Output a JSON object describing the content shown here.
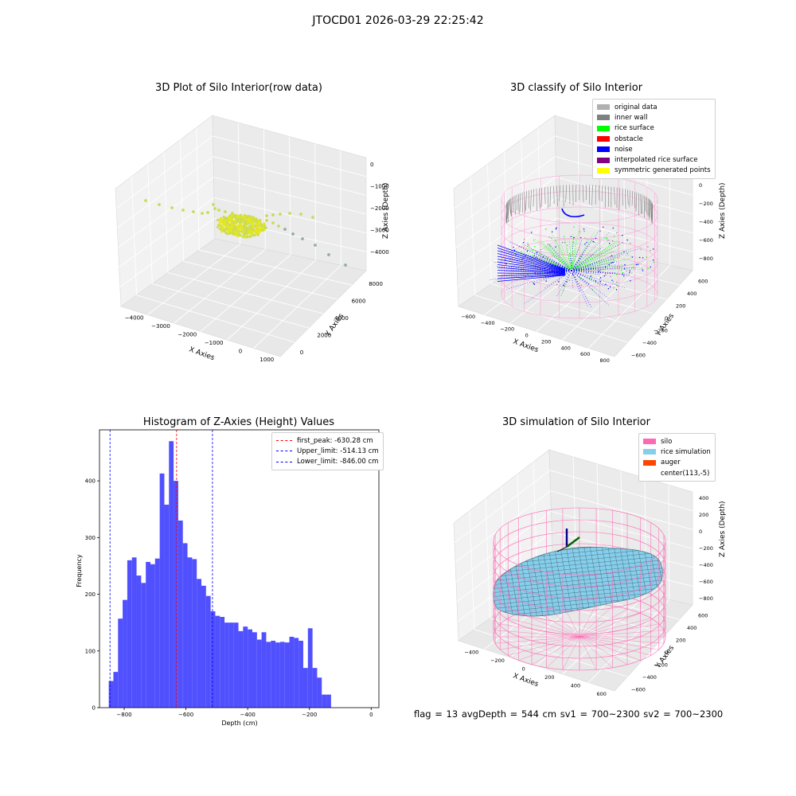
{
  "suptitle": "JTOCD01 2026-03-29 22:25:42",
  "plot1": {
    "title": "3D Plot of Silo Interior(row data)",
    "xlabel": "X Axies",
    "ylabel": "Y Axies",
    "zlabel": "Z Axies (Depth)",
    "xticks": [
      "−4000",
      "−3000",
      "−2000",
      "−1000",
      "0",
      "1000"
    ],
    "yticks": [
      "0",
      "2000",
      "4000",
      "6000",
      "8000"
    ],
    "zticks": [
      "0",
      "−1000",
      "−2000",
      "−3000",
      "−4000"
    ]
  },
  "plot2": {
    "title": "3D classify of Silo Interior",
    "xlabel": "X Axies",
    "ylabel": "Y Axies",
    "zlabel": "Z Axies (Depth)",
    "xticks": [
      "−600",
      "−400",
      "−200",
      "0",
      "200",
      "400",
      "600",
      "800"
    ],
    "yticks": [
      "−600",
      "−400",
      "−200",
      "0",
      "200",
      "400",
      "600"
    ],
    "zticks": [
      "200",
      "0",
      "−200",
      "−400",
      "−600",
      "−800"
    ],
    "legend": [
      {
        "label": "original data",
        "color": "#b0b0b0"
      },
      {
        "label": "inner wall",
        "color": "#808080"
      },
      {
        "label": "rice surface",
        "color": "#00ff00"
      },
      {
        "label": "obstacle",
        "color": "#ff0000"
      },
      {
        "label": "noise",
        "color": "#0000ff"
      },
      {
        "label": "interpolated rice surface",
        "color": "#800080"
      },
      {
        "label": "symmetric generated points",
        "color": "#ffff00"
      }
    ]
  },
  "plot4": {
    "title": "3D simulation of Silo Interior",
    "xlabel": "X Axies",
    "ylabel": "Y Axies",
    "zlabel": "Z Axies (Depth)",
    "xticks": [
      "−400",
      "−200",
      "0",
      "200",
      "400",
      "600"
    ],
    "yticks": [
      "−600",
      "−400",
      "−200",
      "0",
      "200",
      "400",
      "600"
    ],
    "zticks": [
      "400",
      "200",
      "0",
      "−200",
      "−400",
      "−600",
      "−800"
    ],
    "legend": [
      {
        "label": "silo",
        "color": "#ff69b4"
      },
      {
        "label": "rice simulation",
        "color": "#87ceeb"
      },
      {
        "label": "auger",
        "color": "#ff4500"
      },
      {
        "label": "center(113,-5)",
        "color": ""
      }
    ]
  },
  "footer": "flag = 13   avgDepth = 544 cm   sv1 = 700~2300   sv2 = 700~2300",
  "chart_data": [
    {
      "type": "scatter",
      "title": "3D Plot of Silo Interior(row data)",
      "xlabel": "X Axies",
      "ylabel": "Y Axies",
      "zlabel": "Z Axies (Depth)",
      "xlim": [
        -4500,
        1500
      ],
      "ylim": [
        -500,
        9500
      ],
      "zlim": [
        -4500,
        0
      ],
      "colors": [
        "#c8dc5a",
        "#e6e61e",
        "#8fb0a0"
      ]
    },
    {
      "type": "scatter",
      "title": "3D classify of Silo Interior",
      "xlabel": "X Axies",
      "ylabel": "Y Axies",
      "zlabel": "Z Axies (Depth)",
      "xlim": [
        -600,
        800
      ],
      "ylim": [
        -600,
        600
      ],
      "zlim": [
        -900,
        300
      ],
      "series": [
        {
          "name": "original data",
          "color": "#b0b0b0"
        },
        {
          "name": "inner wall",
          "color": "#808080"
        },
        {
          "name": "rice surface",
          "color": "#00ff00"
        },
        {
          "name": "obstacle",
          "color": "#ff0000"
        },
        {
          "name": "noise",
          "color": "#0000ff"
        },
        {
          "name": "interpolated rice surface",
          "color": "#800080"
        },
        {
          "name": "symmetric generated points",
          "color": "#ffff00"
        }
      ]
    },
    {
      "type": "bar",
      "title": "Histogram of Z-Axies (Height) Values",
      "xlabel": "Depth (cm)",
      "ylabel": "Frequency",
      "xlim": [
        -880,
        25
      ],
      "ylim": [
        0,
        490
      ],
      "bin_start": -850,
      "bin_width": 15,
      "values": [
        47,
        63,
        157,
        190,
        260,
        265,
        233,
        220,
        257,
        253,
        263,
        413,
        358,
        470,
        400,
        330,
        290,
        265,
        262,
        227,
        215,
        197,
        170,
        162,
        160,
        150,
        150,
        150,
        135,
        143,
        138,
        133,
        120,
        133,
        116,
        118,
        115,
        116,
        115,
        125,
        123,
        118,
        70,
        140,
        70,
        53,
        23,
        23
      ],
      "xticks": [
        "−800",
        "−600",
        "−400",
        "−200",
        "0"
      ],
      "yticks": [
        "0",
        "100",
        "200",
        "300",
        "400"
      ],
      "bar_color": "#5050ff",
      "vlines": [
        {
          "name": "first_peak: -630.28 cm",
          "x": -630.28,
          "color": "#ff0000"
        },
        {
          "name": "Upper_limit: -514.13 cm",
          "x": -514.13,
          "color": "#0000ff"
        },
        {
          "name": "Lower_limit: -846.00 cm",
          "x": -846.0,
          "color": "#0000ff"
        }
      ]
    },
    {
      "type": "scatter",
      "title": "3D simulation of Silo Interior",
      "xlabel": "X Axies",
      "ylabel": "Y Axies",
      "zlabel": "Z Axies (Depth)",
      "xlim": [
        -500,
        700
      ],
      "ylim": [
        -600,
        600
      ],
      "zlim": [
        -900,
        500
      ],
      "series": [
        {
          "name": "silo",
          "color": "#ff69b4"
        },
        {
          "name": "rice simulation",
          "color": "#87ceeb"
        },
        {
          "name": "auger",
          "color": "#ff4500"
        }
      ],
      "center": [
        113,
        -5
      ]
    }
  ]
}
